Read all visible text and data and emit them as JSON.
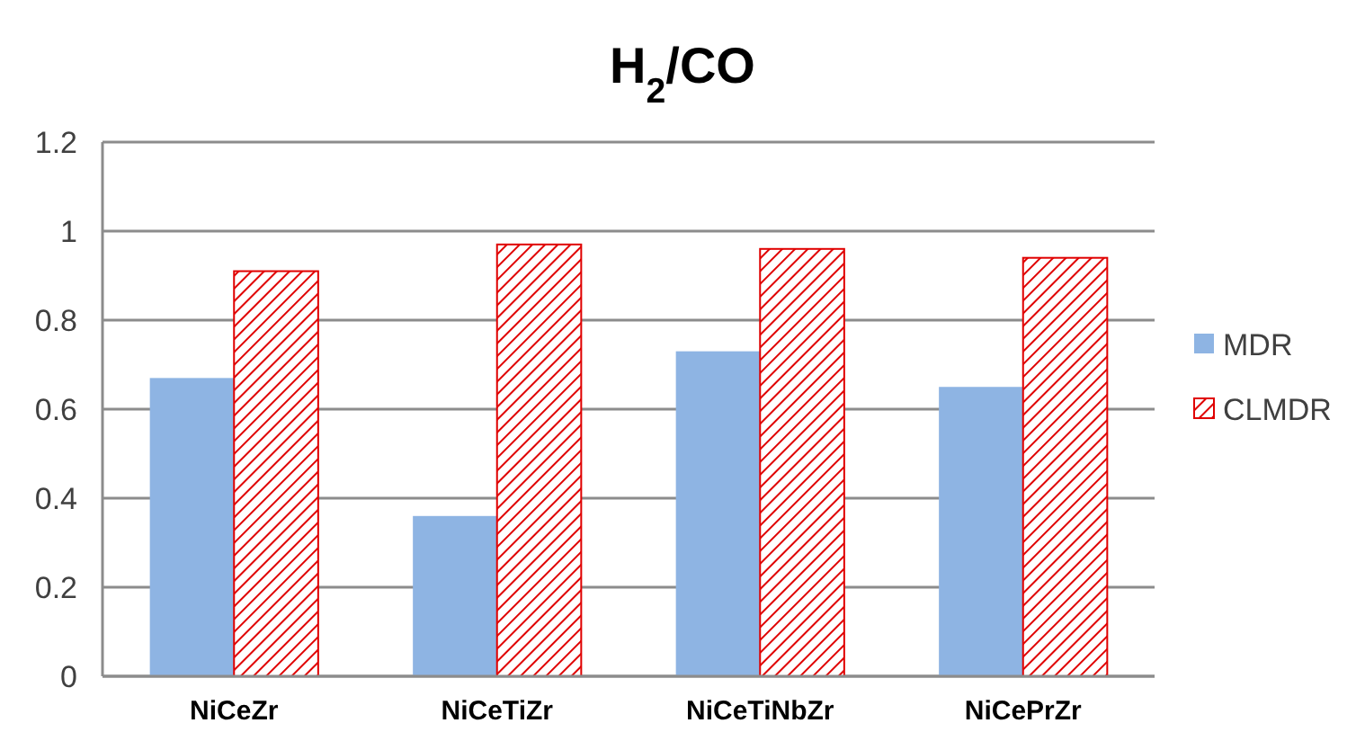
{
  "chart_data": {
    "type": "bar",
    "title": "H$_{2}$/CO",
    "categories": [
      "NiCeZr",
      "NiCeTiZr",
      "NiCeTiNbZr",
      "NiCePrZr"
    ],
    "series": [
      {
        "name": "MDR",
        "color": "#8eb4e3",
        "values": [
          0.67,
          0.36,
          0.73,
          0.65
        ]
      },
      {
        "name": "CLMDR",
        "color": "#e00000",
        "values": [
          0.91,
          0.97,
          0.96,
          0.94
        ]
      }
    ],
    "ylim": [
      0,
      1.2
    ],
    "yticks": [
      0,
      0.2,
      0.4,
      0.6,
      0.8,
      1,
      1.2
    ],
    "grid": "y",
    "legend": "right"
  }
}
